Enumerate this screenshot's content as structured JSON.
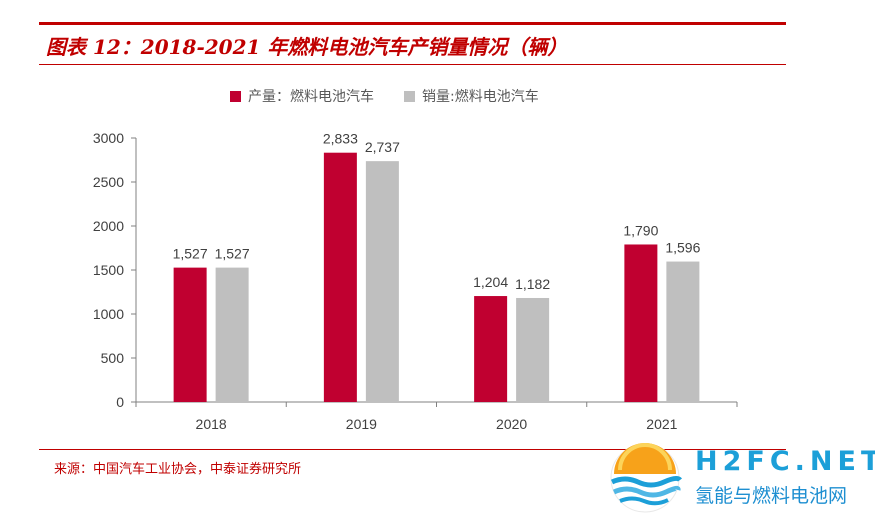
{
  "header": {
    "title": "图表 12：2018-2021 年燃料电池汽车产销量情况（辆）"
  },
  "legend": {
    "items": [
      {
        "label": "产量：燃料电池汽车",
        "color": "#c00030"
      },
      {
        "label": "销量:燃料电池汽车",
        "color": "#bfbfbf"
      }
    ]
  },
  "chart_data": {
    "type": "bar",
    "categories": [
      "2018",
      "2019",
      "2020",
      "2021"
    ],
    "series": [
      {
        "name": "产量：燃料电池汽车",
        "values": [
          1527,
          2833,
          1204,
          1790
        ],
        "labels": [
          "1,527",
          "2,833",
          "1,204",
          "1,790"
        ],
        "color": "#c00030"
      },
      {
        "name": "销量:燃料电池汽车",
        "values": [
          1527,
          2737,
          1182,
          1596
        ],
        "labels": [
          "1,527",
          "2,737",
          "1,182",
          "1,596"
        ],
        "color": "#bfbfbf"
      }
    ],
    "yticks": [
      "0",
      "500",
      "1000",
      "1500",
      "2000",
      "2500",
      "3000"
    ],
    "ylim": [
      0,
      3000
    ],
    "grid": false,
    "legend_position": "top"
  },
  "footer": {
    "source": "来源：中国汽车工业协会，中泰证券研究所"
  },
  "logo": {
    "name": "H2FC.NET",
    "subtitle": "氢能与燃料电池网"
  }
}
